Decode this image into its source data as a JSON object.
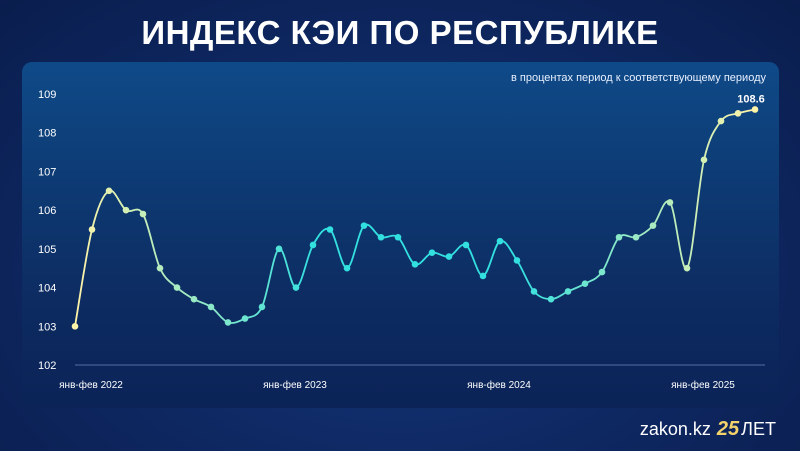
{
  "header": {
    "title": "ИНДЕКС КЭИ ПО РЕСПУБЛИКЕ"
  },
  "footer": {
    "site": "zakon.kz",
    "badge": "25",
    "suffix": "ЛЕТ"
  },
  "colors": {
    "line_start": "#fff3a8",
    "line_mid": "#33e0e0",
    "line_end": "#fff3a8",
    "panel": "#0d3a73"
  },
  "chart_data": {
    "type": "line",
    "title": "",
    "subtitle": "в процентах период к соответствующему периоду",
    "xlabel": "",
    "ylabel": "",
    "ylim": [
      102,
      109
    ],
    "yticks": [
      102,
      103,
      104,
      105,
      106,
      107,
      108,
      109
    ],
    "xtick_labels": [
      "янв-фев 2022",
      "янв-фев 2023",
      "янв-фев 2024",
      "янв-фев 2025"
    ],
    "xtick_index": [
      0,
      12,
      24,
      36
    ],
    "grid": false,
    "last_value_label": "108.6",
    "values": [
      103.0,
      105.5,
      106.5,
      106.0,
      105.9,
      104.5,
      104.0,
      103.7,
      103.5,
      103.1,
      103.2,
      103.5,
      105.0,
      104.0,
      105.1,
      105.5,
      104.5,
      105.6,
      105.3,
      105.3,
      104.6,
      104.9,
      104.8,
      105.1,
      104.3,
      105.2,
      104.7,
      103.9,
      103.7,
      103.9,
      104.1,
      104.4,
      105.3,
      105.3,
      105.6,
      106.2,
      104.5,
      107.3,
      108.3,
      108.5,
      108.6
    ]
  }
}
